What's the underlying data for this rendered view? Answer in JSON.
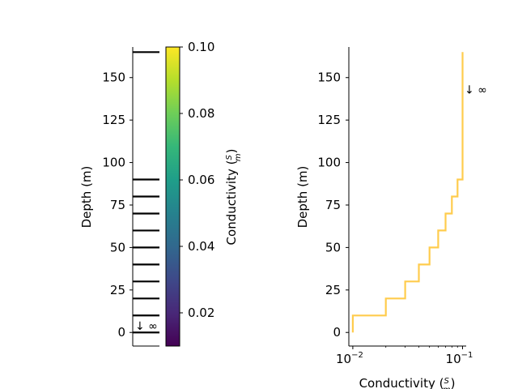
{
  "chart_data": [
    {
      "type": "heatmap",
      "panel": "layered-model-column",
      "ylabel": "Depth (m)",
      "ylim": [
        168,
        -8
      ],
      "yticks": [
        0,
        25,
        50,
        75,
        100,
        125,
        150
      ],
      "layer_tops": [
        0,
        10,
        20,
        30,
        40,
        50,
        60,
        70,
        80,
        90
      ],
      "layer_bottom_shown": 165,
      "conductivity": [
        0.01,
        0.02,
        0.03,
        0.04,
        0.05,
        0.06,
        0.07,
        0.08,
        0.09,
        0.1
      ],
      "halfspace_annotation": "↓ ∞",
      "colorbar": {
        "label_main": "Conductivity (",
        "frac_num": "S",
        "frac_den": "m",
        "label_close": ")",
        "range": [
          0.01,
          0.1
        ],
        "ticks": [
          0.02,
          0.04,
          0.06,
          0.08,
          0.1
        ],
        "tick_labels": [
          "0.02",
          "0.04",
          "0.06",
          "0.08",
          "0.10"
        ],
        "colormap": "viridis"
      }
    },
    {
      "type": "line",
      "panel": "conductivity-profile",
      "ylabel": "Depth (m)",
      "xlabel_main": "Conductivity (",
      "x_frac_num": "S",
      "x_frac_den": "m",
      "xlabel_close": ")",
      "xscale": "log",
      "xlim": [
        0.0092,
        0.108
      ],
      "xticks": [
        0.01,
        0.1
      ],
      "xtick_bases": [
        "10",
        "10"
      ],
      "xtick_exponents": [
        "−2",
        "−1"
      ],
      "ylim": [
        168,
        -8
      ],
      "yticks": [
        0,
        25,
        50,
        75,
        100,
        125,
        150
      ],
      "series": [
        {
          "color": "#ffcc4d",
          "depth_steps": [
            0,
            10,
            20,
            30,
            40,
            50,
            60,
            70,
            80,
            90,
            165
          ],
          "conductivity": [
            0.01,
            0.02,
            0.03,
            0.04,
            0.05,
            0.06,
            0.07,
            0.08,
            0.09,
            0.1
          ]
        }
      ],
      "halfspace_annotation": "↓ ∞",
      "halfspace_annotation_depth": 143
    }
  ]
}
